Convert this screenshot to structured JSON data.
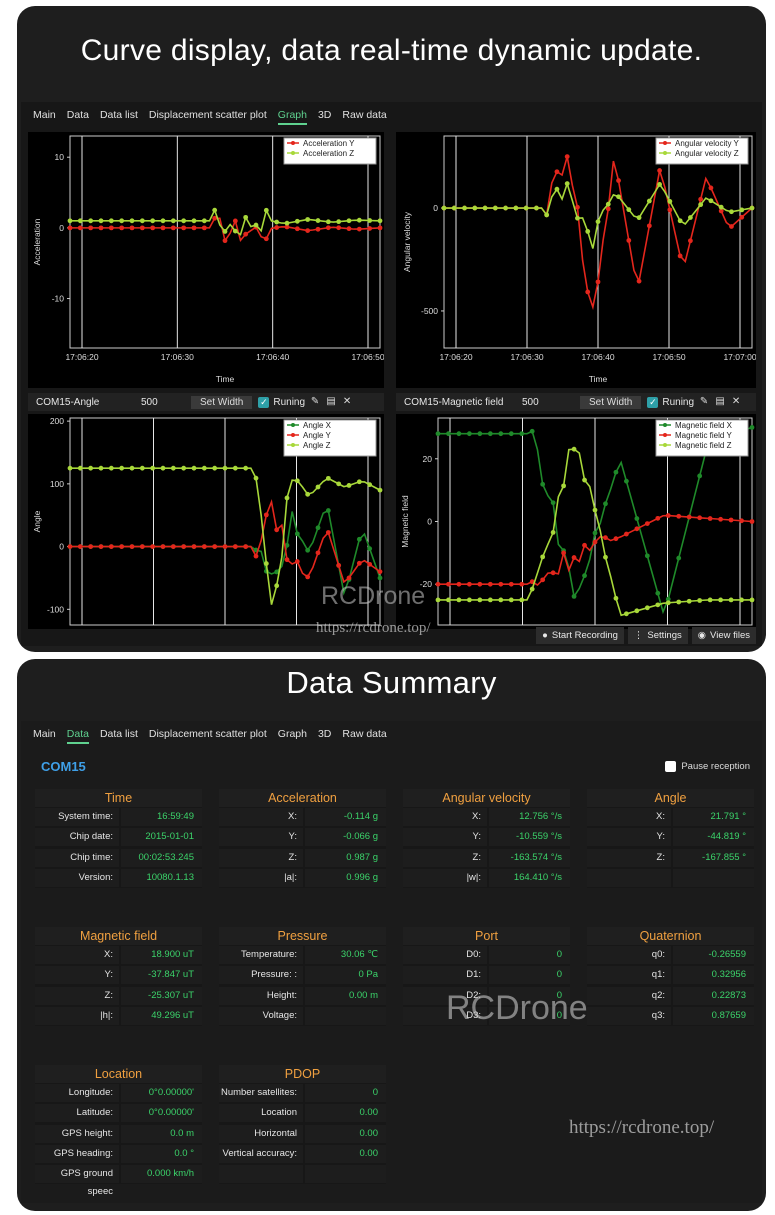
{
  "card1": {
    "banner": "Curve display, data real-time dynamic update."
  },
  "card2": {
    "banner": "Data Summary"
  },
  "tabs": [
    "Main",
    "Data",
    "Data list",
    "Displacement scatter plot",
    "Graph",
    "3D",
    "Raw data"
  ],
  "graph_active_tab": 4,
  "data_active_tab": 1,
  "colors": {
    "x_series": "#1f8a2a",
    "y_series": "#e4261c",
    "z_series": "#a8d83a",
    "value_text": "#3bd36a",
    "header_text": "#f0a040",
    "com_text": "#3fa0e8"
  },
  "chart_data": [
    {
      "type": "line",
      "ylabel": "Acceleration",
      "xlabel": "Time",
      "yticks": [
        "10",
        "0",
        "-10"
      ],
      "xticks": [
        "17:06:20",
        "17:06:30",
        "17:06:40",
        "17:06:50"
      ],
      "legend": [
        "Acceleration Y",
        "Acceleration Z"
      ],
      "ylim": [
        -17,
        13
      ],
      "series": [
        {
          "name": "Acceleration Y",
          "values_before": 0,
          "values_after": [
            0,
            -0.5,
            -0.3,
            0.2,
            -0.4,
            0.1,
            -0.2,
            0
          ]
        },
        {
          "name": "Acceleration Z",
          "values_before": 1,
          "values_after": [
            1,
            0.3,
            1.3,
            0.6,
            1.2,
            0.8,
            1.1,
            1
          ]
        }
      ]
    },
    {
      "type": "line",
      "ylabel": "Angular velocity",
      "xlabel": "Time",
      "yticks": [
        "0",
        "-500"
      ],
      "xticks": [
        "17:06:20",
        "17:06:30",
        "17:06:40",
        "17:06:50",
        "17:07:00"
      ],
      "legend": [
        "Angular velocity Y",
        "Angular velocity Z"
      ],
      "ylim": [
        -680,
        350
      ],
      "series": [
        {
          "name": "Angular velocity Y",
          "values_before": 0,
          "values_after": [
            0,
            300,
            -550,
            250,
            -400,
            200,
            -300,
            150,
            -100,
            0
          ]
        },
        {
          "name": "Angular velocity Z",
          "values_before": 0,
          "values_after": [
            0,
            100,
            -150,
            80,
            -60,
            120,
            -90,
            50,
            -20,
            0
          ]
        }
      ]
    },
    {
      "type": "line",
      "title": "COM15-Angle",
      "ylabel": "Angle",
      "xlabel": "",
      "yticks": [
        "200",
        "100",
        "0",
        "-100"
      ],
      "xticks": [],
      "legend": [
        "Angle X",
        "Angle Y",
        "Angle Z"
      ],
      "ylim": [
        -125,
        205
      ],
      "series": [
        {
          "name": "Angle X",
          "values_before": 0,
          "values_after": [
            0,
            -60,
            40,
            -10,
            70,
            -80,
            30,
            -50
          ]
        },
        {
          "name": "Angle Y",
          "values_before": 0,
          "values_after": [
            0,
            60,
            -30,
            -50,
            30,
            -60,
            -20,
            -40
          ]
        },
        {
          "name": "Angle Z",
          "values_before": 125,
          "values_after": [
            125,
            -110,
            120,
            80,
            110,
            95,
            105,
            90
          ]
        }
      ]
    },
    {
      "type": "line",
      "title": "COM15-Magnetic field",
      "ylabel": "Magnetic field",
      "xlabel": "",
      "yticks": [
        "20",
        "0",
        "-20"
      ],
      "xticks": [],
      "legend": [
        "Magnetic field X",
        "Magnetic field Y",
        "Magnetic field Z"
      ],
      "ylim": [
        -33,
        33
      ],
      "series": [
        {
          "name": "Magnetic field X",
          "values_before": 28,
          "values_after": [
            28,
            -25,
            20,
            -30,
            25,
            30
          ]
        },
        {
          "name": "Magnetic field Y",
          "values_before": -20,
          "values_after": [
            -20,
            -10,
            -5,
            2,
            1,
            0
          ]
        },
        {
          "name": "Magnetic field Z",
          "values_before": -25,
          "values_after": [
            -25,
            28,
            -30,
            -26,
            -25,
            -25
          ]
        }
      ]
    }
  ],
  "angle_bar": {
    "name": "COM15-Angle",
    "num": "500",
    "set_width": "Set Width",
    "running": "Runing"
  },
  "mag_bar": {
    "name": "COM15-Magnetic field",
    "num": "500",
    "set_width": "Set Width",
    "running": "Runing"
  },
  "bottom_buttons": {
    "record": "Start Recording",
    "settings": "Settings",
    "view": "View files"
  },
  "watermark": {
    "brand": "RCDrone",
    "url": "https://rcdrone.top/"
  },
  "data": {
    "com": "COM15",
    "pause": "Pause reception",
    "panels": [
      {
        "title": "Time",
        "rows": [
          [
            "System time:",
            "16:59:49"
          ],
          [
            "Chip date:",
            "2015-01-01"
          ],
          [
            "Chip time:",
            "00:02:53.245"
          ],
          [
            "Version:",
            "10080.1.13"
          ]
        ]
      },
      {
        "title": "Acceleration",
        "rows": [
          [
            "X:",
            "-0.114 g"
          ],
          [
            "Y:",
            "-0.066 g"
          ],
          [
            "Z:",
            "0.987 g"
          ],
          [
            "|a|:",
            "0.996 g"
          ]
        ]
      },
      {
        "title": "Angular velocity",
        "rows": [
          [
            "X:",
            "12.756 °/s"
          ],
          [
            "Y:",
            "-10.559 °/s"
          ],
          [
            "Z:",
            "-163.574 °/s"
          ],
          [
            "|w|:",
            "164.410 °/s"
          ]
        ]
      },
      {
        "title": "Angle",
        "rows": [
          [
            "X:",
            "21.791 °"
          ],
          [
            "Y:",
            "-44.819 °"
          ],
          [
            "Z:",
            "-167.855 °"
          ],
          [
            "",
            ""
          ]
        ]
      },
      {
        "title": "Magnetic field",
        "rows": [
          [
            "X:",
            "18.900 uT"
          ],
          [
            "Y:",
            "-37.847 uT"
          ],
          [
            "Z:",
            "-25.307 uT"
          ],
          [
            "|h|:",
            "49.296 uT"
          ]
        ]
      },
      {
        "title": "Pressure",
        "rows": [
          [
            "Temperature:",
            "30.06 ℃"
          ],
          [
            "Pressure: :",
            "0 Pa"
          ],
          [
            "Height:",
            "0.00 m"
          ],
          [
            "Voltage:",
            ""
          ]
        ]
      },
      {
        "title": "Port",
        "rows": [
          [
            "D0:",
            "0"
          ],
          [
            "D1:",
            "0"
          ],
          [
            "D2:",
            "0"
          ],
          [
            "D3:",
            "0"
          ]
        ]
      },
      {
        "title": "Quaternion",
        "rows": [
          [
            "q0:",
            "-0.26559"
          ],
          [
            "q1:",
            "0.32956"
          ],
          [
            "q2:",
            "0.22873"
          ],
          [
            "q3:",
            "0.87659"
          ]
        ]
      },
      {
        "title": "Location",
        "rows": [
          [
            "Longitude:",
            "0°0.00000'"
          ],
          [
            "Latitude:",
            "0°0.00000'"
          ],
          [
            "GPS height:",
            "0.0 m"
          ],
          [
            "GPS heading:",
            "0.0 °"
          ],
          [
            "GPS ground speec",
            "0.000 km/h"
          ]
        ]
      },
      {
        "title": "PDOP",
        "rows": [
          [
            "Number satellites:",
            "0"
          ],
          [
            "Location accuracy:",
            "0.00"
          ],
          [
            "Horizontal accurac",
            "0.00"
          ],
          [
            "Vertical accuracy:",
            "0.00"
          ],
          [
            "",
            ""
          ]
        ]
      }
    ]
  }
}
